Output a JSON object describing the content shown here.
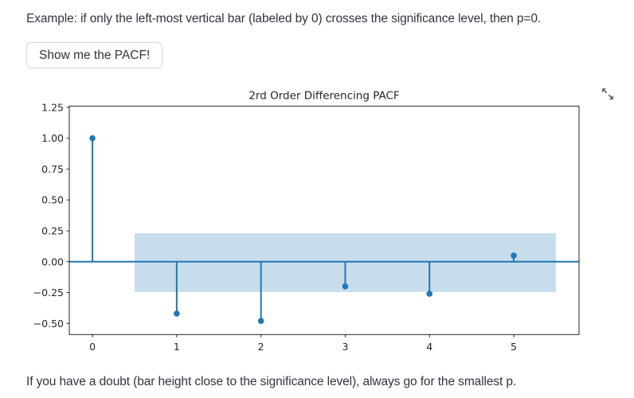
{
  "page": {
    "top_instruction": "Example: if only the left-most vertical bar (labeled by 0) crosses the significance level, then p=0.",
    "bottom_instruction": "If you have a doubt (bar height close to the significance level), always go for the smallest p."
  },
  "toolbar": {
    "show_pacf_label": "Show me the PACF!"
  },
  "icons": {
    "expand": "expand-fullscreen-icon"
  },
  "chart_data": {
    "type": "stem",
    "title": "2rd Order Differencing PACF",
    "xlabel": "",
    "ylabel": "",
    "x": [
      0,
      1,
      2,
      3,
      4,
      5
    ],
    "values": [
      1.0,
      -0.42,
      -0.48,
      -0.2,
      -0.26,
      0.05
    ],
    "xticks": [
      0,
      1,
      2,
      3,
      4,
      5
    ],
    "yticks": [
      1.25,
      1.0,
      0.75,
      0.5,
      0.25,
      0.0,
      -0.25,
      -0.5
    ],
    "xlim": [
      -0.275,
      5.775
    ],
    "ylim": [
      -0.59,
      1.26
    ],
    "baseline_y": 0.0,
    "confidence_band": {
      "x_start": 0.5,
      "x_end": 5.5,
      "y_low": -0.245,
      "y_high": 0.23
    },
    "grid": false,
    "legend": [],
    "colors": {
      "stem": "#1f77b4",
      "marker": "#1f77b4",
      "band": "#c7ddec",
      "spine": "#262626",
      "tick_text": "#262626",
      "title_text": "#262626"
    }
  }
}
